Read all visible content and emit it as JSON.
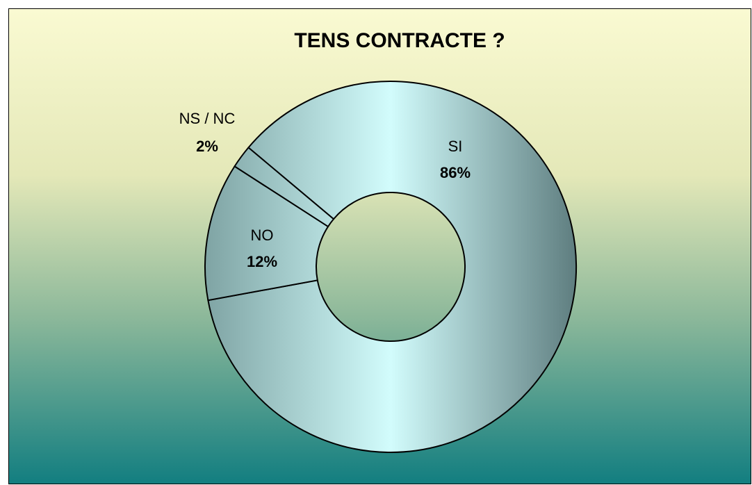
{
  "chart_data": {
    "type": "donut",
    "title": "TENS CONTRACTE ?",
    "categories": [
      "SI",
      "NO",
      "NS / NC"
    ],
    "values": [
      86,
      12,
      2
    ],
    "value_labels": [
      "86%",
      "12%",
      "2%"
    ]
  }
}
